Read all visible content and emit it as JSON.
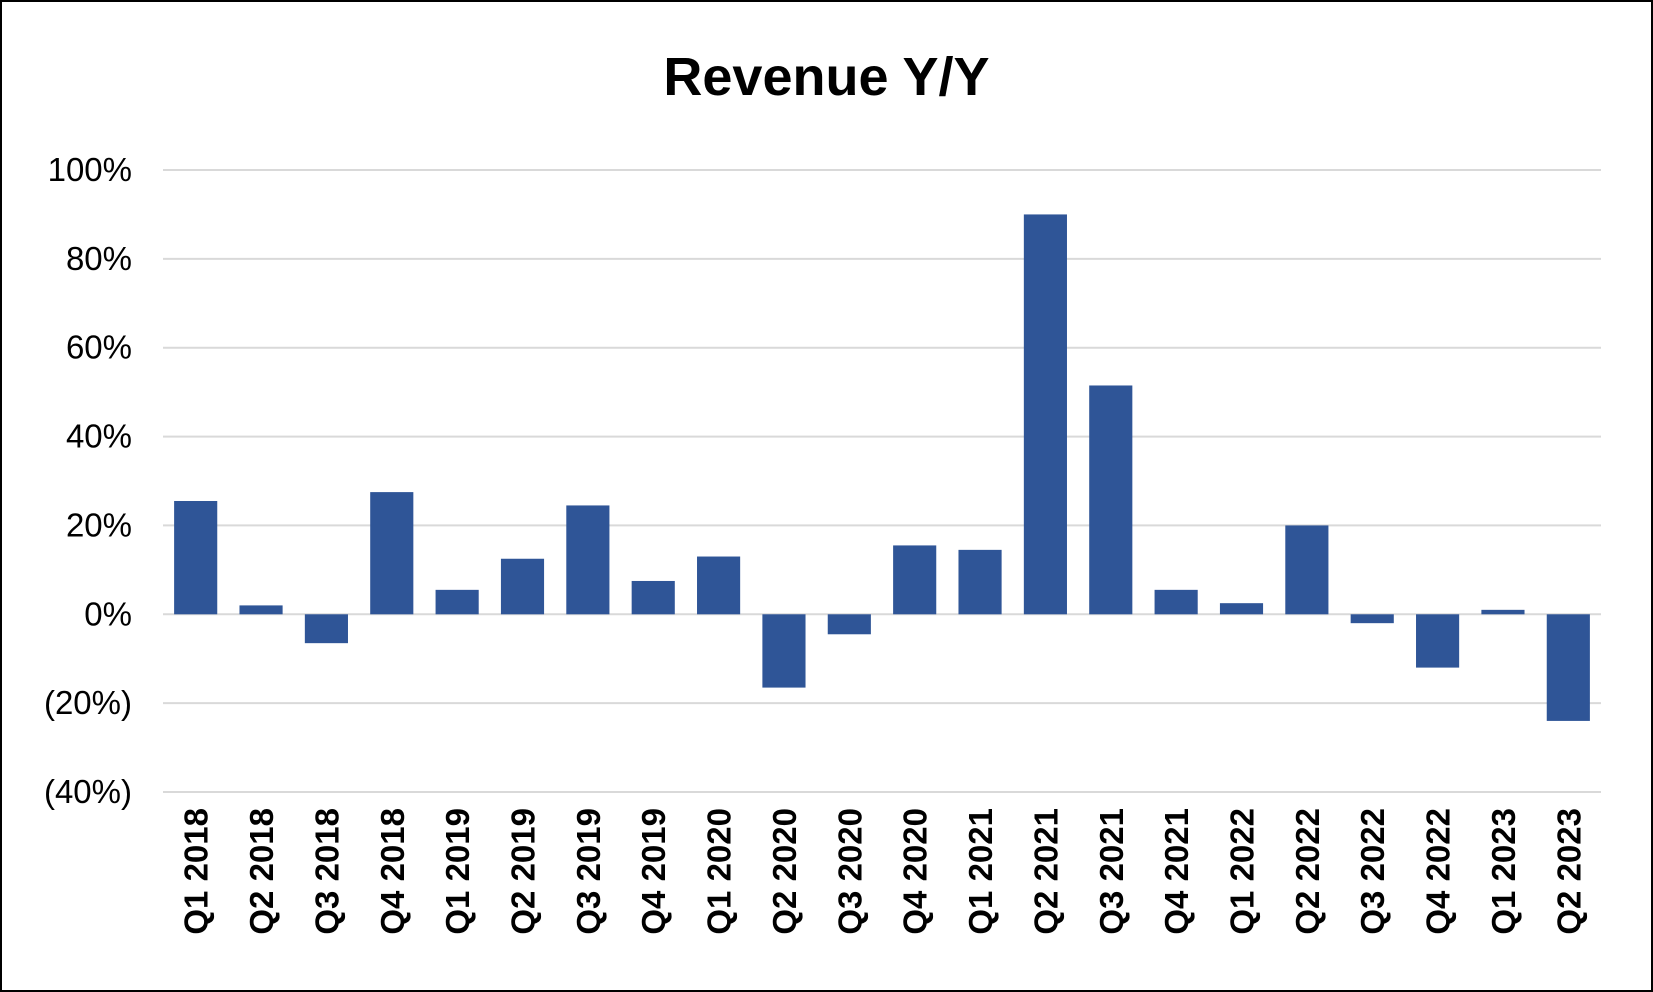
{
  "chart_data": {
    "type": "bar",
    "title": "Revenue Y/Y",
    "xlabel": "",
    "ylabel": "",
    "categories": [
      "Q1 2018",
      "Q2 2018",
      "Q3 2018",
      "Q4 2018",
      "Q1 2019",
      "Q2 2019",
      "Q3 2019",
      "Q4 2019",
      "Q1 2020",
      "Q2 2020",
      "Q3 2020",
      "Q4 2020",
      "Q1 2021",
      "Q2 2021",
      "Q3 2021",
      "Q4 2021",
      "Q1 2022",
      "Q2 2022",
      "Q3 2022",
      "Q4 2022",
      "Q1 2023",
      "Q2 2023"
    ],
    "values": [
      25.5,
      2,
      -6.5,
      27.5,
      5.5,
      12.5,
      24.5,
      7.5,
      13,
      -16.5,
      -4.5,
      15.5,
      14.5,
      90,
      51.5,
      5.5,
      2.5,
      20,
      -2,
      -12,
      1,
      -24
    ],
    "ylim": [
      -40,
      100
    ],
    "yticks": [
      100,
      80,
      60,
      40,
      20,
      0,
      -20,
      -40
    ],
    "ytick_labels": [
      "100%",
      "80%",
      "60%",
      "40%",
      "20%",
      "0%",
      "(20%)",
      "(40%)"
    ],
    "grid": true,
    "legend": "none",
    "bar_color": "#2f5597"
  }
}
